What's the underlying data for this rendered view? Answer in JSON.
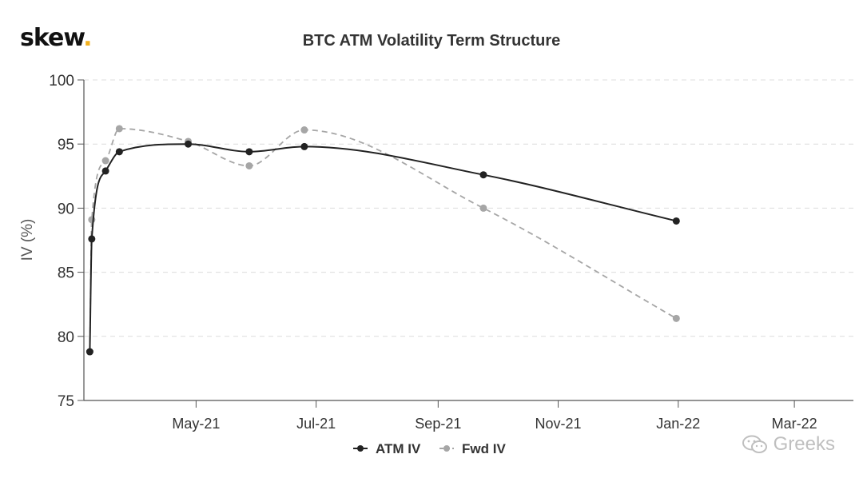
{
  "brand": {
    "logo_text": "skew",
    "logo_dot": ".",
    "accent": "#f2b01e"
  },
  "watermark": {
    "text": "Greeks",
    "icon": "wechat-bubble-icon"
  },
  "chart_data": {
    "type": "line",
    "title": "BTC ATM Volatility Term Structure",
    "xlabel": "",
    "ylabel": "IV (%)",
    "ylim": [
      75,
      100
    ],
    "yticks": [
      75,
      80,
      85,
      90,
      95,
      100
    ],
    "xlim": [
      "2021-03-05",
      "2022-03-31"
    ],
    "xticks": [
      "2021-05-01",
      "2021-07-01",
      "2021-09-01",
      "2021-11-01",
      "2022-01-01",
      "2022-03-01"
    ],
    "xtick_labels": [
      "May-21",
      "Jul-21",
      "Sep-21",
      "Nov-21",
      "Jan-22",
      "Mar-22"
    ],
    "grid": "horizontal dashed",
    "legend": "bottom-center",
    "series": [
      {
        "name": "ATM IV",
        "color": "#222222",
        "style": "solid",
        "points": [
          {
            "x": "2021-03-08",
            "y": 78.8
          },
          {
            "x": "2021-03-09",
            "y": 87.6
          },
          {
            "x": "2021-03-16",
            "y": 92.9
          },
          {
            "x": "2021-03-23",
            "y": 94.4
          },
          {
            "x": "2021-04-27",
            "y": 95.0
          },
          {
            "x": "2021-05-28",
            "y": 94.4
          },
          {
            "x": "2021-06-25",
            "y": 94.8
          },
          {
            "x": "2021-09-24",
            "y": 92.6
          },
          {
            "x": "2021-12-31",
            "y": 89.0
          }
        ]
      },
      {
        "name": "Fwd IV",
        "color": "#a6a6a6",
        "style": "dashed",
        "points": [
          {
            "x": "2021-03-08",
            "y": 78.8
          },
          {
            "x": "2021-03-09",
            "y": 89.1
          },
          {
            "x": "2021-03-16",
            "y": 93.7
          },
          {
            "x": "2021-03-23",
            "y": 96.2
          },
          {
            "x": "2021-04-27",
            "y": 95.2
          },
          {
            "x": "2021-05-28",
            "y": 93.3
          },
          {
            "x": "2021-06-25",
            "y": 96.1
          },
          {
            "x": "2021-09-24",
            "y": 90.0
          },
          {
            "x": "2021-12-31",
            "y": 81.4
          }
        ]
      }
    ]
  }
}
